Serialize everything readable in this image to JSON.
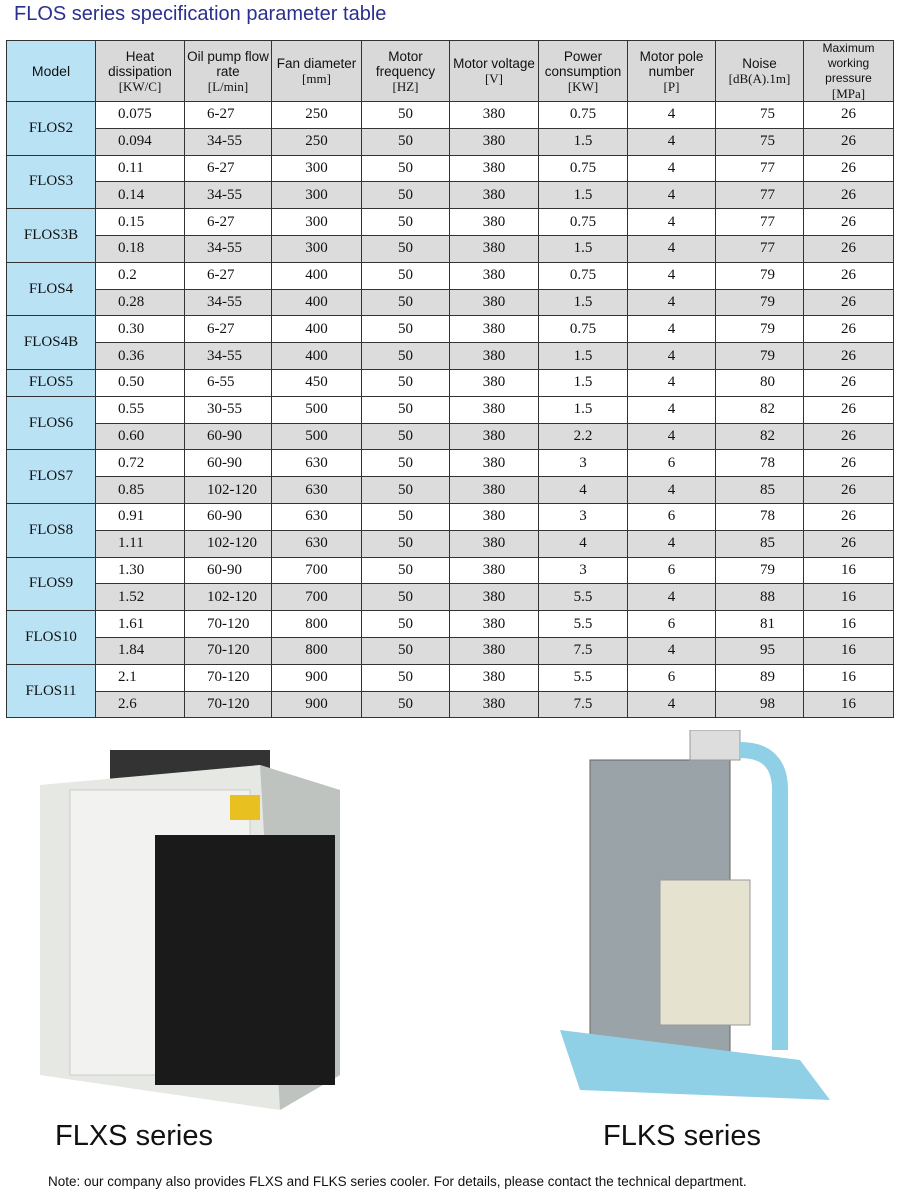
{
  "title": "FLOS series specification parameter table",
  "headers": [
    {
      "label": "Model",
      "unit": ""
    },
    {
      "label": "Heat dissipation",
      "unit": "[KW/C]"
    },
    {
      "label": "Oil pump flow rate",
      "unit": "[L/min]"
    },
    {
      "label": "Fan diameter",
      "unit": "[mm]"
    },
    {
      "label": "Motor frequency",
      "unit": "[HZ]"
    },
    {
      "label": "Motor voltage",
      "unit": "[V]"
    },
    {
      "label": "Power consumption",
      "unit": "[KW]"
    },
    {
      "label": "Motor pole number",
      "unit": "[P]"
    },
    {
      "label": "Noise",
      "unit": "[dB(A).1m]"
    },
    {
      "label": "Maximum working pressure",
      "unit": "[MPa]"
    }
  ],
  "models": [
    {
      "name": "FLOS2",
      "rows": [
        [
          "0.075",
          "6-27",
          "250",
          "50",
          "380",
          "0.75",
          "4",
          "75",
          "26"
        ],
        [
          "0.094",
          "34-55",
          "250",
          "50",
          "380",
          "1.5",
          "4",
          "75",
          "26"
        ]
      ]
    },
    {
      "name": "FLOS3",
      "rows": [
        [
          "0.11",
          "6-27",
          "300",
          "50",
          "380",
          "0.75",
          "4",
          "77",
          "26"
        ],
        [
          "0.14",
          "34-55",
          "300",
          "50",
          "380",
          "1.5",
          "4",
          "77",
          "26"
        ]
      ]
    },
    {
      "name": "FLOS3B",
      "rows": [
        [
          "0.15",
          "6-27",
          "300",
          "50",
          "380",
          "0.75",
          "4",
          "77",
          "26"
        ],
        [
          "0.18",
          "34-55",
          "300",
          "50",
          "380",
          "1.5",
          "4",
          "77",
          "26"
        ]
      ]
    },
    {
      "name": "FLOS4",
      "rows": [
        [
          "0.2",
          "6-27",
          "400",
          "50",
          "380",
          "0.75",
          "4",
          "79",
          "26"
        ],
        [
          "0.28",
          "34-55",
          "400",
          "50",
          "380",
          "1.5",
          "4",
          "79",
          "26"
        ]
      ]
    },
    {
      "name": "FLOS4B",
      "rows": [
        [
          "0.30",
          "6-27",
          "400",
          "50",
          "380",
          "0.75",
          "4",
          "79",
          "26"
        ],
        [
          "0.36",
          "34-55",
          "400",
          "50",
          "380",
          "1.5",
          "4",
          "79",
          "26"
        ]
      ]
    },
    {
      "name": "FLOS5",
      "rows": [
        [
          "0.50",
          "6-55",
          "450",
          "50",
          "380",
          "1.5",
          "4",
          "80",
          "26"
        ]
      ]
    },
    {
      "name": "FLOS6",
      "rows": [
        [
          "0.55",
          "30-55",
          "500",
          "50",
          "380",
          "1.5",
          "4",
          "82",
          "26"
        ],
        [
          "0.60",
          "60-90",
          "500",
          "50",
          "380",
          "2.2",
          "4",
          "82",
          "26"
        ]
      ]
    },
    {
      "name": "FLOS7",
      "rows": [
        [
          "0.72",
          "60-90",
          "630",
          "50",
          "380",
          "3",
          "6",
          "78",
          "26"
        ],
        [
          "0.85",
          "102-120",
          "630",
          "50",
          "380",
          "4",
          "4",
          "85",
          "26"
        ]
      ]
    },
    {
      "name": "FLOS8",
      "rows": [
        [
          "0.91",
          "60-90",
          "630",
          "50",
          "380",
          "3",
          "6",
          "78",
          "26"
        ],
        [
          "1.11",
          "102-120",
          "630",
          "50",
          "380",
          "4",
          "4",
          "85",
          "26"
        ]
      ]
    },
    {
      "name": "FLOS9",
      "rows": [
        [
          "1.30",
          "60-90",
          "700",
          "50",
          "380",
          "3",
          "6",
          "79",
          "16"
        ],
        [
          "1.52",
          "102-120",
          "700",
          "50",
          "380",
          "5.5",
          "4",
          "88",
          "16"
        ]
      ]
    },
    {
      "name": "FLOS10",
      "rows": [
        [
          "1.61",
          "70-120",
          "800",
          "50",
          "380",
          "5.5",
          "6",
          "81",
          "16"
        ],
        [
          "1.84",
          "70-120",
          "800",
          "50",
          "380",
          "7.5",
          "4",
          "95",
          "16"
        ]
      ]
    },
    {
      "name": "FLOS11",
      "rows": [
        [
          "2.1",
          "70-120",
          "900",
          "50",
          "380",
          "5.5",
          "6",
          "89",
          "16"
        ],
        [
          "2.6",
          "70-120",
          "900",
          "50",
          "380",
          "7.5",
          "4",
          "98",
          "16"
        ]
      ]
    }
  ],
  "products": [
    {
      "caption": "FLXS series",
      "image": "flxs-cooler-photo"
    },
    {
      "caption": "FLKS series",
      "image": "flks-cooler-photo"
    }
  ],
  "note": "Note: our company also provides FLXS and FLKS series cooler. For details, please contact the technical department.",
  "colors": {
    "title": "#2b2f8f",
    "model_bg": "#b9e2f5",
    "header_bg": "#d9d9d9",
    "alt_row": "#dcdcdc"
  }
}
